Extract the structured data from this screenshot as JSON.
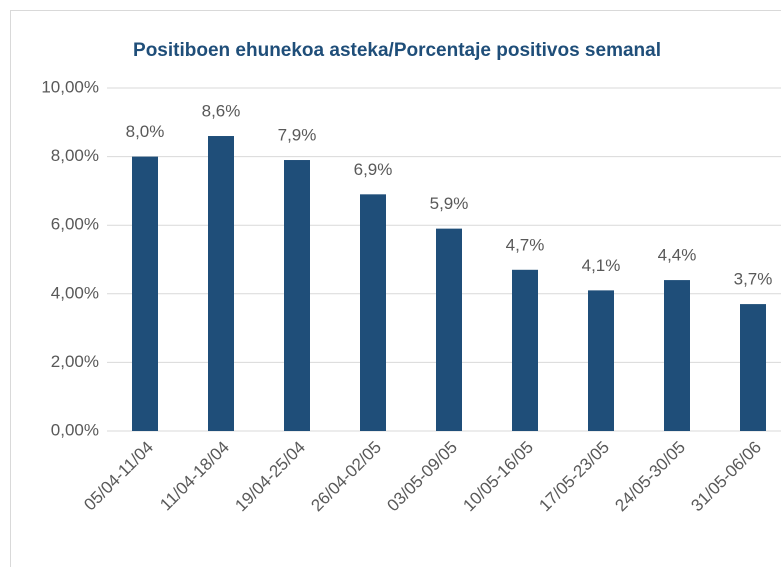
{
  "chart_data": {
    "type": "bar",
    "title": "Positiboen ehunekoa asteka/Porcentaje positivos semanal",
    "categories": [
      "05/04-11/04",
      "11/04-18/04",
      "19/04-25/04",
      "26/04-02/05",
      "03/05-09/05",
      "10/05-16/05",
      "17/05-23/05",
      "24/05-30/05",
      "31/05-06/06"
    ],
    "values": [
      8.0,
      8.6,
      7.9,
      6.9,
      5.9,
      4.7,
      4.1,
      4.4,
      3.7
    ],
    "value_labels": [
      "8,0%",
      "8,6%",
      "7,9%",
      "6,9%",
      "5,9%",
      "4,7%",
      "4,1%",
      "4,4%",
      "3,7%"
    ],
    "color": "#1f4e79",
    "ylim": [
      0,
      10
    ],
    "yticks": [
      {
        "value": 0,
        "label": "0,00%"
      },
      {
        "value": 2,
        "label": "2,00%"
      },
      {
        "value": 4,
        "label": "4,00%"
      },
      {
        "value": 6,
        "label": "6,00%"
      },
      {
        "value": 8,
        "label": "8,00%"
      },
      {
        "value": 10,
        "label": "10,00%"
      }
    ],
    "grid": true
  }
}
